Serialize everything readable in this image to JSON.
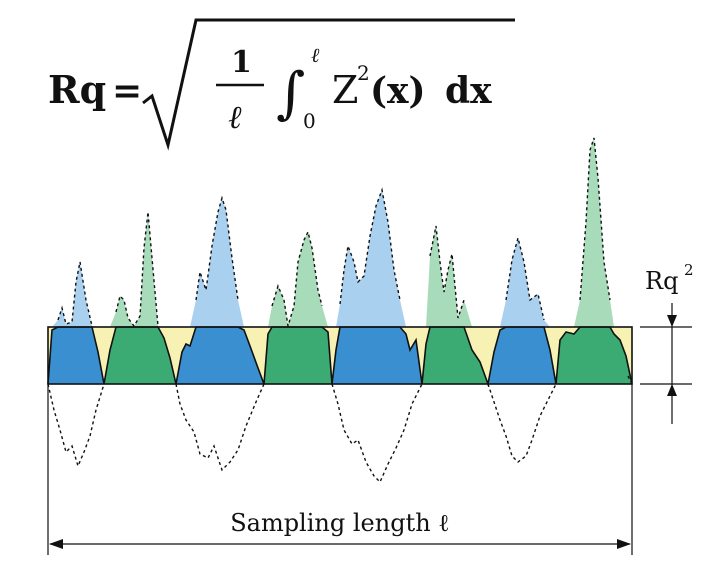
{
  "formula": {
    "lhs": "Rq",
    "equals": "=",
    "numerator": "1",
    "denominator": "ℓ",
    "integral_sign": "∫",
    "upper_limit": "ℓ",
    "lower_limit": "0",
    "integrand": "Z",
    "exponent": "2",
    "argument": "(x)",
    "differential": "dx"
  },
  "labels": {
    "rq_label": "Rq",
    "rq_exponent": "2",
    "sampling_label": "Sampling length ℓ"
  },
  "colors": {
    "band": "#f7f2b4",
    "blue_dark": "#3a8fd1",
    "blue_light": "#a9d0ef",
    "green_dark": "#3cab73",
    "green_light": "#a7dbb9",
    "line": "#111111"
  }
}
